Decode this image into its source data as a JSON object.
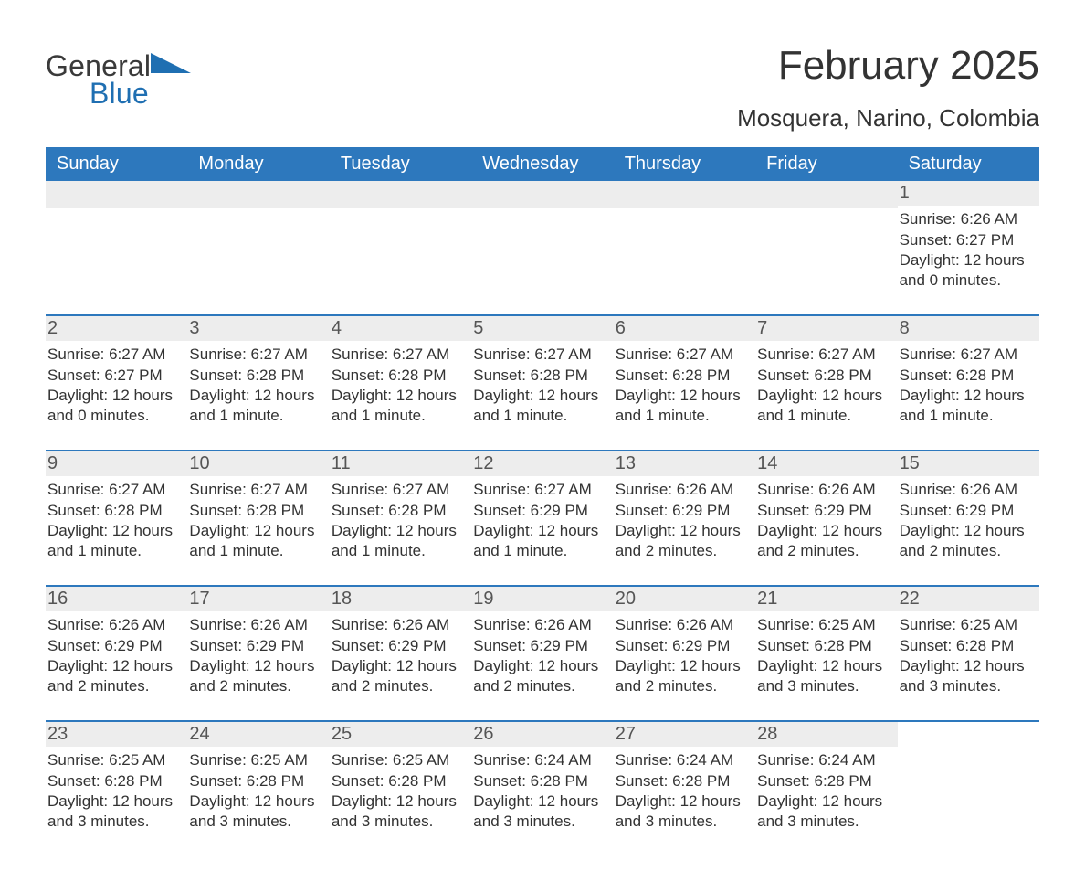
{
  "brand": {
    "part1": "General",
    "part2": "Blue"
  },
  "title": "February 2025",
  "location": "Mosquera, Narino, Colombia",
  "colors": {
    "header_bg": "#2d78bd",
    "header_text": "#ffffff",
    "row_rule": "#2d78bd",
    "daynum_bg": "#ededed",
    "body_text": "#333333",
    "logo_blue": "#1f6fb2"
  },
  "typography": {
    "title_pt": 44,
    "location_pt": 26,
    "dow_pt": 20,
    "daynum_pt": 20,
    "body_pt": 17,
    "logo_pt": 32
  },
  "layout": {
    "columns": 7,
    "rows": 5,
    "first_day_column_index": 6
  },
  "days_of_week": [
    "Sunday",
    "Monday",
    "Tuesday",
    "Wednesday",
    "Thursday",
    "Friday",
    "Saturday"
  ],
  "days": [
    {
      "n": "1",
      "sunrise": "Sunrise: 6:26 AM",
      "sunset": "Sunset: 6:27 PM",
      "daylight1": "Daylight: 12 hours",
      "daylight2": "and 0 minutes."
    },
    {
      "n": "2",
      "sunrise": "Sunrise: 6:27 AM",
      "sunset": "Sunset: 6:27 PM",
      "daylight1": "Daylight: 12 hours",
      "daylight2": "and 0 minutes."
    },
    {
      "n": "3",
      "sunrise": "Sunrise: 6:27 AM",
      "sunset": "Sunset: 6:28 PM",
      "daylight1": "Daylight: 12 hours",
      "daylight2": "and 1 minute."
    },
    {
      "n": "4",
      "sunrise": "Sunrise: 6:27 AM",
      "sunset": "Sunset: 6:28 PM",
      "daylight1": "Daylight: 12 hours",
      "daylight2": "and 1 minute."
    },
    {
      "n": "5",
      "sunrise": "Sunrise: 6:27 AM",
      "sunset": "Sunset: 6:28 PM",
      "daylight1": "Daylight: 12 hours",
      "daylight2": "and 1 minute."
    },
    {
      "n": "6",
      "sunrise": "Sunrise: 6:27 AM",
      "sunset": "Sunset: 6:28 PM",
      "daylight1": "Daylight: 12 hours",
      "daylight2": "and 1 minute."
    },
    {
      "n": "7",
      "sunrise": "Sunrise: 6:27 AM",
      "sunset": "Sunset: 6:28 PM",
      "daylight1": "Daylight: 12 hours",
      "daylight2": "and 1 minute."
    },
    {
      "n": "8",
      "sunrise": "Sunrise: 6:27 AM",
      "sunset": "Sunset: 6:28 PM",
      "daylight1": "Daylight: 12 hours",
      "daylight2": "and 1 minute."
    },
    {
      "n": "9",
      "sunrise": "Sunrise: 6:27 AM",
      "sunset": "Sunset: 6:28 PM",
      "daylight1": "Daylight: 12 hours",
      "daylight2": "and 1 minute."
    },
    {
      "n": "10",
      "sunrise": "Sunrise: 6:27 AM",
      "sunset": "Sunset: 6:28 PM",
      "daylight1": "Daylight: 12 hours",
      "daylight2": "and 1 minute."
    },
    {
      "n": "11",
      "sunrise": "Sunrise: 6:27 AM",
      "sunset": "Sunset: 6:28 PM",
      "daylight1": "Daylight: 12 hours",
      "daylight2": "and 1 minute."
    },
    {
      "n": "12",
      "sunrise": "Sunrise: 6:27 AM",
      "sunset": "Sunset: 6:29 PM",
      "daylight1": "Daylight: 12 hours",
      "daylight2": "and 1 minute."
    },
    {
      "n": "13",
      "sunrise": "Sunrise: 6:26 AM",
      "sunset": "Sunset: 6:29 PM",
      "daylight1": "Daylight: 12 hours",
      "daylight2": "and 2 minutes."
    },
    {
      "n": "14",
      "sunrise": "Sunrise: 6:26 AM",
      "sunset": "Sunset: 6:29 PM",
      "daylight1": "Daylight: 12 hours",
      "daylight2": "and 2 minutes."
    },
    {
      "n": "15",
      "sunrise": "Sunrise: 6:26 AM",
      "sunset": "Sunset: 6:29 PM",
      "daylight1": "Daylight: 12 hours",
      "daylight2": "and 2 minutes."
    },
    {
      "n": "16",
      "sunrise": "Sunrise: 6:26 AM",
      "sunset": "Sunset: 6:29 PM",
      "daylight1": "Daylight: 12 hours",
      "daylight2": "and 2 minutes."
    },
    {
      "n": "17",
      "sunrise": "Sunrise: 6:26 AM",
      "sunset": "Sunset: 6:29 PM",
      "daylight1": "Daylight: 12 hours",
      "daylight2": "and 2 minutes."
    },
    {
      "n": "18",
      "sunrise": "Sunrise: 6:26 AM",
      "sunset": "Sunset: 6:29 PM",
      "daylight1": "Daylight: 12 hours",
      "daylight2": "and 2 minutes."
    },
    {
      "n": "19",
      "sunrise": "Sunrise: 6:26 AM",
      "sunset": "Sunset: 6:29 PM",
      "daylight1": "Daylight: 12 hours",
      "daylight2": "and 2 minutes."
    },
    {
      "n": "20",
      "sunrise": "Sunrise: 6:26 AM",
      "sunset": "Sunset: 6:29 PM",
      "daylight1": "Daylight: 12 hours",
      "daylight2": "and 2 minutes."
    },
    {
      "n": "21",
      "sunrise": "Sunrise: 6:25 AM",
      "sunset": "Sunset: 6:28 PM",
      "daylight1": "Daylight: 12 hours",
      "daylight2": "and 3 minutes."
    },
    {
      "n": "22",
      "sunrise": "Sunrise: 6:25 AM",
      "sunset": "Sunset: 6:28 PM",
      "daylight1": "Daylight: 12 hours",
      "daylight2": "and 3 minutes."
    },
    {
      "n": "23",
      "sunrise": "Sunrise: 6:25 AM",
      "sunset": "Sunset: 6:28 PM",
      "daylight1": "Daylight: 12 hours",
      "daylight2": "and 3 minutes."
    },
    {
      "n": "24",
      "sunrise": "Sunrise: 6:25 AM",
      "sunset": "Sunset: 6:28 PM",
      "daylight1": "Daylight: 12 hours",
      "daylight2": "and 3 minutes."
    },
    {
      "n": "25",
      "sunrise": "Sunrise: 6:25 AM",
      "sunset": "Sunset: 6:28 PM",
      "daylight1": "Daylight: 12 hours",
      "daylight2": "and 3 minutes."
    },
    {
      "n": "26",
      "sunrise": "Sunrise: 6:24 AM",
      "sunset": "Sunset: 6:28 PM",
      "daylight1": "Daylight: 12 hours",
      "daylight2": "and 3 minutes."
    },
    {
      "n": "27",
      "sunrise": "Sunrise: 6:24 AM",
      "sunset": "Sunset: 6:28 PM",
      "daylight1": "Daylight: 12 hours",
      "daylight2": "and 3 minutes."
    },
    {
      "n": "28",
      "sunrise": "Sunrise: 6:24 AM",
      "sunset": "Sunset: 6:28 PM",
      "daylight1": "Daylight: 12 hours",
      "daylight2": "and 3 minutes."
    }
  ]
}
